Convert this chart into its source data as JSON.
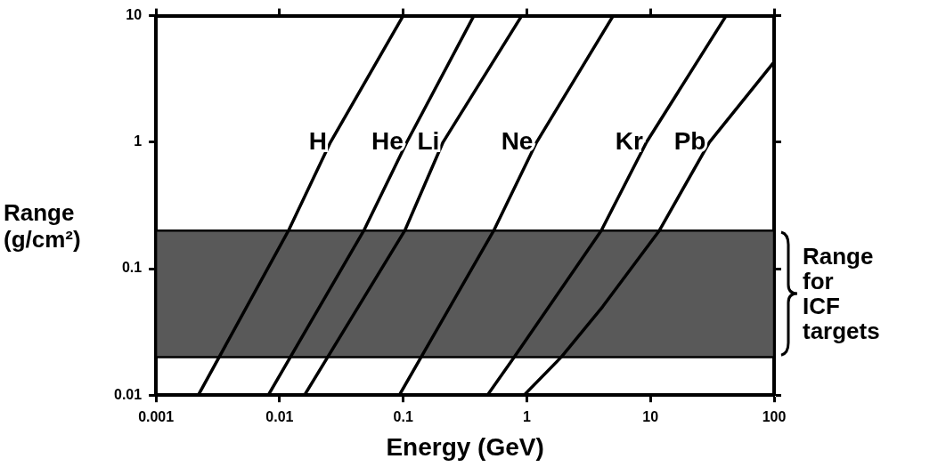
{
  "chart_data": {
    "type": "line",
    "xlabel": "Energy (GeV)",
    "ylabel": "Range (g/cm²)",
    "log": "xy",
    "xlim": [
      0.001,
      100
    ],
    "ylim": [
      0.01,
      10
    ],
    "xticks": [
      0.001,
      0.01,
      0.1,
      1,
      10,
      100
    ],
    "yticks": [
      0.01,
      0.1,
      1,
      10
    ],
    "grid": false,
    "legend": false,
    "marker": "none",
    "line_style": "solid",
    "series": [
      {
        "name": "H",
        "color": "#000000",
        "x": [
          0.0022,
          0.0118,
          0.0258,
          0.1
        ],
        "values": [
          0.01,
          0.2,
          1,
          10
        ]
      },
      {
        "name": "He",
        "color": "#000000",
        "x": [
          0.0081,
          0.048,
          0.107,
          0.373
        ],
        "values": [
          0.01,
          0.2,
          1,
          10
        ]
      },
      {
        "name": "Li",
        "color": "#000000",
        "x": [
          0.0159,
          0.103,
          0.21,
          0.91
        ],
        "values": [
          0.01,
          0.2,
          1,
          10
        ]
      },
      {
        "name": "Ne",
        "color": "#000000",
        "x": [
          0.093,
          0.54,
          1.2,
          5.0
        ],
        "values": [
          0.01,
          0.2,
          1,
          10
        ]
      },
      {
        "name": "Kr",
        "color": "#000000",
        "x": [
          0.48,
          0.79,
          4.0,
          9.3,
          41
        ],
        "values": [
          0.01,
          0.02,
          0.2,
          1,
          10
        ]
      },
      {
        "name": "Pb",
        "color": "#000000",
        "x": [
          0.95,
          1.9,
          4.1,
          11.8,
          30,
          100
        ],
        "values": [
          0.01,
          0.02,
          0.05,
          0.2,
          1,
          4.3
        ]
      }
    ],
    "bands": [
      {
        "axis": "y",
        "from": 0.02,
        "to": 0.2,
        "label": "Range for ICF targets",
        "color": "#595959"
      }
    ]
  }
}
